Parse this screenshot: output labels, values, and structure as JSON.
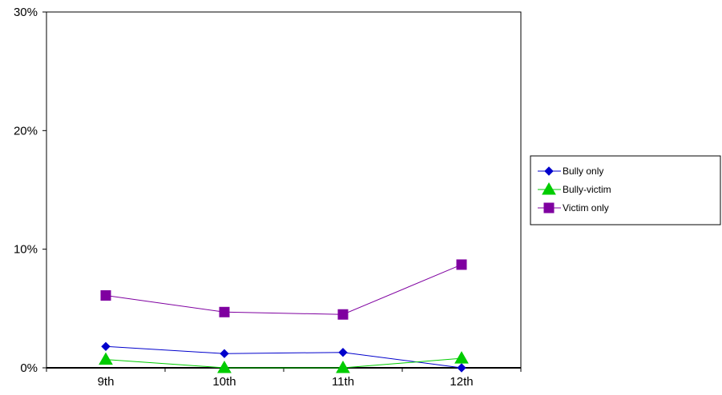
{
  "chart_data": {
    "type": "line",
    "categories": [
      "9th",
      "10th",
      "11th",
      "12th"
    ],
    "ylim": [
      0,
      30
    ],
    "yticks": [
      "0%",
      "10%",
      "20%",
      "30%"
    ],
    "ytick_values": [
      0,
      10,
      20,
      30
    ],
    "grid": false,
    "legend_position": "right",
    "series": [
      {
        "name": "Bully only",
        "values": [
          1.8,
          1.2,
          1.3,
          0.0
        ],
        "color": "#0000CC",
        "marker": "diamond"
      },
      {
        "name": "Bully-victim",
        "values": [
          0.7,
          0.0,
          0.0,
          0.8
        ],
        "color": "#00CC00",
        "marker": "triangle"
      },
      {
        "name": "Victim only",
        "values": [
          6.1,
          4.7,
          4.5,
          8.7
        ],
        "color": "#7F00A0",
        "marker": "square"
      }
    ]
  }
}
